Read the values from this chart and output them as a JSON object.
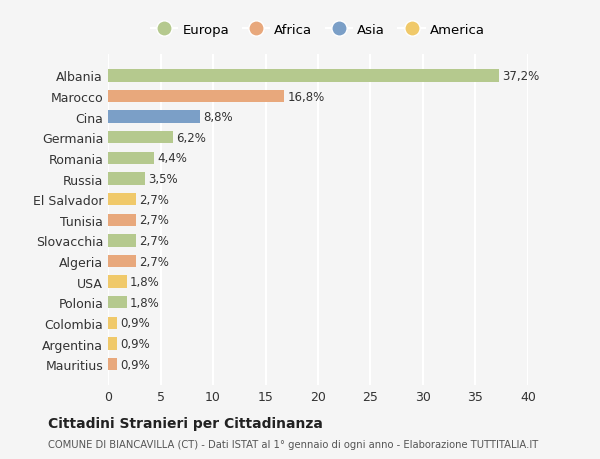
{
  "categories": [
    "Albania",
    "Marocco",
    "Cina",
    "Germania",
    "Romania",
    "Russia",
    "El Salvador",
    "Tunisia",
    "Slovacchia",
    "Algeria",
    "USA",
    "Polonia",
    "Colombia",
    "Argentina",
    "Mauritius"
  ],
  "values": [
    37.2,
    16.8,
    8.8,
    6.2,
    4.4,
    3.5,
    2.7,
    2.7,
    2.7,
    2.7,
    1.8,
    1.8,
    0.9,
    0.9,
    0.9
  ],
  "labels": [
    "37,2%",
    "16,8%",
    "8,8%",
    "6,2%",
    "4,4%",
    "3,5%",
    "2,7%",
    "2,7%",
    "2,7%",
    "2,7%",
    "1,8%",
    "1,8%",
    "0,9%",
    "0,9%",
    "0,9%"
  ],
  "continents": [
    "Europa",
    "Africa",
    "Asia",
    "Europa",
    "Europa",
    "Europa",
    "America",
    "Africa",
    "Europa",
    "Africa",
    "America",
    "Europa",
    "America",
    "America",
    "Africa"
  ],
  "continent_colors": {
    "Europa": "#b5c98e",
    "Africa": "#e8a87c",
    "Asia": "#7b9fc7",
    "America": "#f0c96a"
  },
  "legend_order": [
    "Europa",
    "Africa",
    "Asia",
    "America"
  ],
  "bg_color": "#f5f5f5",
  "grid_color": "#ffffff",
  "title": "Cittadini Stranieri per Cittadinanza",
  "subtitle": "COMUNE DI BIANCAVILLA (CT) - Dati ISTAT al 1° gennaio di ogni anno - Elaborazione TUTTITALIA.IT",
  "xlim": [
    0,
    40
  ],
  "xticks": [
    0,
    5,
    10,
    15,
    20,
    25,
    30,
    35,
    40
  ],
  "bar_height": 0.6
}
